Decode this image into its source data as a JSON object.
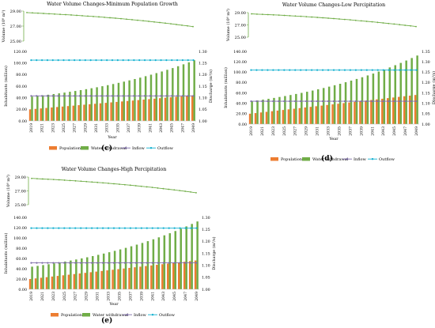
{
  "colors": {
    "population": "#ED7D31",
    "withdrawal": "#70AD47",
    "inflow": "#7F6FA8",
    "outflow": "#12B0D0",
    "volume": "#70AD47"
  },
  "chart_data": [
    {
      "panel": "(c)",
      "type": "bar",
      "title": "Water Volume Changes-Minimum Population Growth",
      "volume_ylabel": "Volume (10⁸ m³)",
      "volume_ylim": [
        25,
        29
      ],
      "volume_ticks": [
        "25.00",
        "27.00",
        "29.00"
      ],
      "volume": [
        28.8,
        28.76,
        28.72,
        28.68,
        28.64,
        28.6,
        28.56,
        28.52,
        28.48,
        28.43,
        28.38,
        28.33,
        28.28,
        28.23,
        28.17,
        28.11,
        28.05,
        27.99,
        27.92,
        27.85,
        27.78,
        27.71,
        27.63,
        27.55,
        27.47,
        27.39,
        27.3,
        27.21,
        27.12,
        27.03,
        26.93
      ],
      "xlabel": "Year",
      "ylabel": "Inhabitants (million)",
      "y2label": "Discharge (m³/s)",
      "ylim": [
        0,
        120
      ],
      "yticks": [
        "0.00",
        "20.00",
        "40.00",
        "60.00",
        "80.00",
        "100.00",
        "120.00"
      ],
      "y2lim": [
        1.0,
        1.3
      ],
      "y2ticks": [
        "1.00",
        "1.05",
        "1.10",
        "1.15",
        "1.20",
        "1.25",
        "1.30"
      ],
      "categories": [
        "2019",
        "2020",
        "2021",
        "2022",
        "2023",
        "2024",
        "2025",
        "2026",
        "2027",
        "2028",
        "2029",
        "2030",
        "2031",
        "2032",
        "2033",
        "2034",
        "2035",
        "2036",
        "2037",
        "2038",
        "2039",
        "2040",
        "2041",
        "2042",
        "2043",
        "2044",
        "2045",
        "2046",
        "2047",
        "2048",
        "2049"
      ],
      "xtick_labels": [
        "2019",
        "2021",
        "2023",
        "2025",
        "2027",
        "2029",
        "2031",
        "2033",
        "2035",
        "2037",
        "2039",
        "2041",
        "2043",
        "2045",
        "2047",
        "2049"
      ],
      "series": [
        {
          "name": "Population",
          "kind": "bar",
          "axis": "left",
          "values": [
            20.0,
            20.8,
            21.6,
            22.4,
            23.2,
            24.0,
            24.8,
            25.6,
            26.4,
            27.2,
            28.0,
            28.8,
            29.6,
            30.4,
            31.2,
            32.0,
            32.8,
            33.6,
            34.4,
            35.2,
            36.0,
            36.8,
            37.6,
            38.4,
            39.2,
            40.0,
            40.8,
            41.6,
            42.4,
            43.2,
            44.0
          ]
        },
        {
          "name": "Water withdrawal",
          "kind": "bar",
          "axis": "left",
          "values": [
            42.0,
            43.0,
            44.1,
            45.2,
            46.4,
            47.6,
            48.9,
            50.3,
            51.7,
            53.2,
            54.8,
            56.4,
            58.1,
            59.9,
            61.7,
            63.7,
            65.7,
            67.8,
            70.0,
            72.3,
            74.7,
            77.2,
            79.8,
            82.5,
            85.3,
            88.2,
            91.2,
            94.4,
            97.7,
            101.1,
            104.7
          ]
        },
        {
          "name": "Inflow",
          "kind": "line",
          "axis": "right",
          "values": [
            1.108,
            1.108,
            1.108,
            1.108,
            1.108,
            1.108,
            1.108,
            1.108,
            1.108,
            1.108,
            1.108,
            1.108,
            1.108,
            1.108,
            1.108,
            1.108,
            1.108,
            1.108,
            1.108,
            1.108,
            1.108,
            1.108,
            1.108,
            1.108,
            1.108,
            1.108,
            1.108,
            1.108,
            1.108,
            1.108,
            1.108
          ]
        },
        {
          "name": "Outflow",
          "kind": "line",
          "axis": "right",
          "values": [
            1.262,
            1.262,
            1.262,
            1.262,
            1.262,
            1.262,
            1.262,
            1.262,
            1.262,
            1.262,
            1.262,
            1.262,
            1.262,
            1.262,
            1.262,
            1.262,
            1.262,
            1.262,
            1.262,
            1.262,
            1.262,
            1.262,
            1.262,
            1.262,
            1.262,
            1.262,
            1.262,
            1.262,
            1.262,
            1.262,
            1.262
          ]
        }
      ],
      "legend": [
        "Population",
        "Water withdrawal",
        "Inflow",
        "Outflow"
      ],
      "legend_position": "bottom"
    },
    {
      "panel": "(d)",
      "type": "bar",
      "title": "Water Volume Changes-Low Percipitation",
      "volume_ylabel": "Volume (10⁸ m³)",
      "volume_ylim": [
        25,
        29
      ],
      "volume_ticks": [
        "25.00",
        "27.00",
        "29.00"
      ],
      "volume": [
        28.8,
        28.76,
        28.72,
        28.68,
        28.64,
        28.6,
        28.55,
        28.5,
        28.45,
        28.4,
        28.34,
        28.28,
        28.22,
        28.16,
        28.1,
        28.03,
        27.96,
        27.89,
        27.82,
        27.74,
        27.66,
        27.58,
        27.5,
        27.41,
        27.32,
        27.23,
        27.14,
        27.04,
        26.94,
        26.84,
        26.73
      ],
      "xlabel": "Year",
      "ylabel": "Inhabitants (million)",
      "y2label": "Discharge (m³/s)",
      "ylim": [
        0,
        140
      ],
      "yticks": [
        "0.00",
        "20.00",
        "40.00",
        "60.00",
        "80.00",
        "100.00",
        "120.00",
        "140.00"
      ],
      "y2lim": [
        1.0,
        1.35
      ],
      "y2ticks": [
        "1.00",
        "1.05",
        "1.10",
        "1.15",
        "1.20",
        "1.25",
        "1.30",
        "1.35"
      ],
      "categories": [
        "2019",
        "2020",
        "2021",
        "2022",
        "2023",
        "2024",
        "2025",
        "2026",
        "2027",
        "2028",
        "2029",
        "2030",
        "2031",
        "2032",
        "2033",
        "2034",
        "2035",
        "2036",
        "2037",
        "2038",
        "2039",
        "2040",
        "2041",
        "2042",
        "2043",
        "2044",
        "2045",
        "2046",
        "2047",
        "2048",
        "2049"
      ],
      "xtick_labels": [
        "2019",
        "2021",
        "2023",
        "2025",
        "2027",
        "2029",
        "2031",
        "2033",
        "2035",
        "2037",
        "2039",
        "2041",
        "2043",
        "2045",
        "2047",
        "2049"
      ],
      "series": [
        {
          "name": "Population",
          "kind": "bar",
          "axis": "left",
          "values": [
            20.0,
            21.2,
            22.4,
            23.6,
            24.8,
            26.0,
            27.2,
            28.4,
            29.6,
            30.8,
            32.0,
            33.2,
            34.4,
            35.6,
            36.8,
            38.0,
            39.2,
            40.4,
            41.6,
            42.8,
            44.0,
            45.2,
            46.4,
            47.6,
            48.8,
            50.0,
            51.2,
            52.4,
            53.6,
            54.8,
            56.0
          ]
        },
        {
          "name": "Water withdrawal",
          "kind": "bar",
          "axis": "left",
          "values": [
            44.0,
            45.5,
            47.1,
            48.7,
            50.4,
            52.2,
            54.0,
            56.0,
            58.0,
            60.1,
            62.3,
            64.6,
            67.0,
            69.5,
            72.1,
            74.8,
            77.6,
            80.6,
            83.7,
            86.9,
            90.2,
            93.7,
            97.3,
            101.1,
            105.0,
            109.1,
            113.4,
            117.8,
            122.4,
            127.2,
            132.0
          ]
        },
        {
          "name": "Inflow",
          "kind": "line",
          "axis": "right",
          "values": [
            1.11,
            1.11,
            1.11,
            1.11,
            1.11,
            1.11,
            1.11,
            1.11,
            1.11,
            1.11,
            1.11,
            1.11,
            1.11,
            1.11,
            1.11,
            1.11,
            1.11,
            1.11,
            1.11,
            1.11,
            1.11,
            1.11,
            1.11,
            1.11,
            1.11,
            1.11,
            1.11,
            1.11,
            1.11,
            1.11,
            1.11
          ]
        },
        {
          "name": "Outflow",
          "kind": "line",
          "axis": "right",
          "values": [
            1.26,
            1.26,
            1.26,
            1.26,
            1.26,
            1.26,
            1.26,
            1.26,
            1.26,
            1.26,
            1.26,
            1.26,
            1.26,
            1.26,
            1.26,
            1.26,
            1.26,
            1.26,
            1.26,
            1.26,
            1.26,
            1.26,
            1.26,
            1.26,
            1.26,
            1.26,
            1.26,
            1.26,
            1.26,
            1.26,
            1.26
          ]
        }
      ],
      "legend": [
        "Population",
        "Water withdrawal",
        "Inflow",
        "Outflow"
      ],
      "legend_position": "bottom"
    },
    {
      "panel": "(e)",
      "type": "bar",
      "title": "Water Volume Changes-High Percipitation",
      "volume_ylabel": "Volume (10⁸ m³)",
      "volume_ylim": [
        25,
        29
      ],
      "volume_ticks": [
        "25.00",
        "27.00",
        "29.00"
      ],
      "volume": [
        28.8,
        28.76,
        28.72,
        28.68,
        28.64,
        28.6,
        28.55,
        28.5,
        28.45,
        28.4,
        28.34,
        28.28,
        28.22,
        28.16,
        28.1,
        28.03,
        27.96,
        27.89,
        27.82,
        27.74,
        27.66,
        27.58,
        27.5,
        27.41,
        27.32,
        27.23,
        27.14,
        27.04,
        26.94,
        26.84,
        26.73
      ],
      "xlabel": "Year",
      "ylabel": "Inhabitants (million)",
      "y2label": "Discharge (m³/s)",
      "ylim": [
        0,
        140
      ],
      "yticks": [
        "0.00",
        "20.00",
        "40.00",
        "60.00",
        "80.00",
        "100.00",
        "120.00",
        "140.00"
      ],
      "y2lim": [
        1.0,
        1.3
      ],
      "y2ticks": [
        "1.00",
        "1.05",
        "1.10",
        "1.15",
        "1.20",
        "1.25",
        "1.30"
      ],
      "categories": [
        "2019",
        "2020",
        "2021",
        "2022",
        "2023",
        "2024",
        "2025",
        "2026",
        "2027",
        "2028",
        "2029",
        "2030",
        "2031",
        "2032",
        "2033",
        "2034",
        "2035",
        "2036",
        "2037",
        "2038",
        "2039",
        "2040",
        "2041",
        "2042",
        "2043",
        "2044",
        "2045",
        "2046",
        "2047",
        "2048",
        "2049"
      ],
      "xtick_labels": [
        "2019",
        "2021",
        "2023",
        "2025",
        "2027",
        "2029",
        "2031",
        "2033",
        "2035",
        "2037",
        "2039",
        "2041",
        "2043",
        "2045",
        "2047",
        "2049"
      ],
      "series": [
        {
          "name": "Population",
          "kind": "bar",
          "axis": "left",
          "values": [
            20.0,
            21.2,
            22.4,
            23.6,
            24.8,
            26.0,
            27.2,
            28.4,
            29.6,
            30.8,
            32.0,
            33.2,
            34.4,
            35.6,
            36.8,
            38.0,
            39.2,
            40.4,
            41.6,
            42.8,
            44.0,
            45.2,
            46.4,
            47.6,
            48.8,
            50.0,
            51.2,
            52.4,
            53.6,
            54.8,
            56.0
          ]
        },
        {
          "name": "Water withdrawal",
          "kind": "bar",
          "axis": "left",
          "values": [
            44.0,
            45.5,
            47.1,
            48.7,
            50.4,
            52.2,
            54.0,
            56.0,
            58.0,
            60.1,
            62.3,
            64.6,
            67.0,
            69.5,
            72.1,
            74.8,
            77.6,
            80.6,
            83.7,
            86.9,
            90.2,
            93.7,
            97.3,
            101.1,
            105.0,
            109.1,
            113.4,
            117.8,
            122.4,
            127.2,
            132.0
          ]
        },
        {
          "name": "Inflow",
          "kind": "line",
          "axis": "right",
          "values": [
            1.11,
            1.11,
            1.11,
            1.11,
            1.11,
            1.11,
            1.11,
            1.11,
            1.11,
            1.11,
            1.11,
            1.11,
            1.11,
            1.11,
            1.11,
            1.11,
            1.11,
            1.11,
            1.11,
            1.11,
            1.11,
            1.11,
            1.11,
            1.11,
            1.11,
            1.11,
            1.11,
            1.11,
            1.11,
            1.11,
            1.11
          ]
        },
        {
          "name": "Outflow",
          "kind": "line",
          "axis": "right",
          "values": [
            1.255,
            1.255,
            1.255,
            1.255,
            1.255,
            1.255,
            1.255,
            1.255,
            1.255,
            1.255,
            1.255,
            1.255,
            1.255,
            1.255,
            1.255,
            1.255,
            1.255,
            1.255,
            1.255,
            1.255,
            1.255,
            1.255,
            1.255,
            1.255,
            1.255,
            1.255,
            1.255,
            1.255,
            1.255,
            1.255,
            1.255
          ]
        }
      ],
      "legend": [
        "Population",
        "Water withdrawal",
        "Inflow",
        "Outflow"
      ],
      "legend_position": "bottom"
    }
  ]
}
